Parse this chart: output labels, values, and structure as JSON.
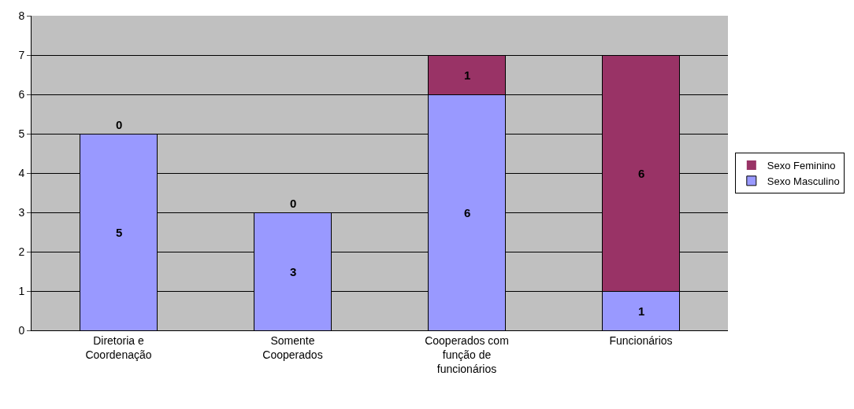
{
  "chart_data": {
    "type": "bar",
    "stacked": true,
    "categories": [
      "Diretoria e Coordenação",
      "Somente Cooperados",
      "Cooperados com função de funcionários",
      "Funcionários"
    ],
    "series": [
      {
        "name": "Sexo Masculino",
        "color": "#9999ff",
        "values": [
          5,
          3,
          6,
          1
        ]
      },
      {
        "name": "Sexo Feminino",
        "color": "#993366",
        "values": [
          0,
          0,
          1,
          6
        ]
      }
    ],
    "ylim": [
      0,
      8
    ],
    "yticks": [
      0,
      1,
      2,
      3,
      4,
      5,
      6,
      7,
      8
    ],
    "grid": "y",
    "legend": "right",
    "data_labels": true
  }
}
